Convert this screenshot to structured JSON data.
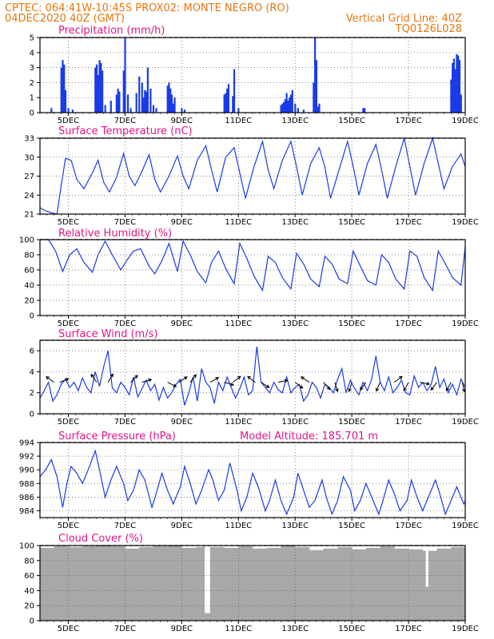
{
  "header": {
    "line1_left": "CPTEC:   064:41W-10:45S   PROX02: MONTE NEGRO (RO)",
    "line2_left": "04DEC2020 40Z (GMT)",
    "line2_right": "Vertical Grid Line: 40Z",
    "line3_right": "TQ0126L028"
  },
  "colors": {
    "header": "#e8750c",
    "panel_title": "#e0158a",
    "series": "#1a3be8",
    "cloud": "#a8a8a8"
  },
  "x_tick_labels": [
    "5DEC",
    "7DEC",
    "9DEC",
    "11DEC",
    "13DEC",
    "15DEC",
    "17DEC",
    "19DEC"
  ],
  "chart_data": [
    {
      "type": "bar",
      "title": "Precipitation (mm/h)",
      "ylim": [
        0,
        5
      ],
      "yticks": [
        0,
        1,
        2,
        3,
        4,
        5
      ],
      "x_range": [
        4.0,
        19.0
      ],
      "grid": true,
      "x": [
        4.4,
        4.75,
        4.8,
        4.85,
        4.9,
        5.0,
        5.15,
        5.95,
        6.0,
        6.05,
        6.1,
        6.15,
        6.2,
        6.3,
        6.5,
        6.7,
        6.75,
        6.8,
        6.95,
        7.0,
        7.1,
        7.2,
        7.4,
        7.5,
        7.6,
        7.65,
        7.7,
        7.75,
        7.8,
        7.9,
        8.0,
        8.1,
        8.5,
        8.55,
        8.6,
        8.65,
        8.7,
        8.75,
        9.0,
        9.1,
        10.5,
        10.55,
        10.6,
        10.65,
        10.8,
        10.85,
        11.0,
        12.5,
        12.55,
        12.6,
        12.65,
        12.7,
        12.75,
        12.8,
        12.85,
        12.9,
        13.0,
        13.1,
        13.3,
        13.65,
        13.7,
        13.75,
        13.8,
        13.85,
        15.4,
        15.45,
        18.5,
        18.55,
        18.6,
        18.65,
        18.7,
        18.75,
        18.8,
        18.85
      ],
      "values": [
        0.3,
        3.0,
        3.5,
        3.2,
        1.5,
        0.3,
        0.2,
        3.0,
        3.2,
        2.5,
        3.5,
        3.3,
        2.8,
        0.5,
        0.8,
        1.2,
        1.6,
        1.4,
        2.8,
        5.0,
        1.2,
        0.3,
        1.3,
        2.4,
        2.0,
        1.0,
        1.5,
        1.4,
        3.0,
        1.6,
        0.5,
        0.3,
        1.8,
        2.0,
        1.6,
        1.2,
        0.6,
        1.0,
        0.3,
        0.2,
        1.2,
        1.3,
        1.6,
        1.9,
        1.1,
        2.9,
        0.3,
        0.5,
        0.6,
        0.7,
        0.9,
        1.3,
        0.8,
        1.0,
        1.2,
        1.5,
        0.6,
        0.3,
        0.2,
        2.0,
        5.0,
        3.5,
        0.4,
        0.6,
        0.3,
        0.3,
        2.2,
        3.3,
        3.6,
        2.9,
        3.9,
        3.8,
        3.5,
        1.2
      ]
    },
    {
      "type": "line",
      "title": "Surface Temperature (nC)",
      "ylim": [
        21,
        33
      ],
      "yticks": [
        21,
        24,
        27,
        30,
        33
      ],
      "x_range": [
        4.0,
        19.0
      ],
      "grid": true,
      "x": [
        4.0,
        4.2,
        4.4,
        4.6,
        4.75,
        4.9,
        5.1,
        5.3,
        5.55,
        5.85,
        6.05,
        6.25,
        6.45,
        6.7,
        6.95,
        7.15,
        7.35,
        7.6,
        7.85,
        8.05,
        8.25,
        8.55,
        8.85,
        9.05,
        9.25,
        9.55,
        9.85,
        10.05,
        10.25,
        10.55,
        10.85,
        11.05,
        11.25,
        11.55,
        11.85,
        12.05,
        12.25,
        12.55,
        12.85,
        13.05,
        13.25,
        13.55,
        13.85,
        14.05,
        14.25,
        14.55,
        14.85,
        15.05,
        15.25,
        15.55,
        15.85,
        16.05,
        16.25,
        16.55,
        16.85,
        17.05,
        17.25,
        17.55,
        17.85,
        18.05,
        18.25,
        18.55,
        18.85,
        19.0
      ],
      "values": [
        22.0,
        21.5,
        21.2,
        21.0,
        25.5,
        29.8,
        29.5,
        26.5,
        25.0,
        27.5,
        29.5,
        26.0,
        24.5,
        26.8,
        30.6,
        27.0,
        25.5,
        27.8,
        30.4,
        26.5,
        24.5,
        27.0,
        30.2,
        27.0,
        25.0,
        29.5,
        31.8,
        28.0,
        24.5,
        30.0,
        31.5,
        27.5,
        23.5,
        28.5,
        32.5,
        28.0,
        25.0,
        29.5,
        32.5,
        28.5,
        24.0,
        29.0,
        31.5,
        28.5,
        23.5,
        28.0,
        32.5,
        28.5,
        24.0,
        29.0,
        32.0,
        28.0,
        23.5,
        28.5,
        33.0,
        28.5,
        24.0,
        29.0,
        33.5,
        29.0,
        25.0,
        28.5,
        30.5,
        28.5
      ]
    },
    {
      "type": "line",
      "title": "Relative Humidity (%)",
      "ylim": [
        0,
        100
      ],
      "yticks": [
        0,
        20,
        40,
        60,
        80,
        100
      ],
      "x_range": [
        4.0,
        19.0
      ],
      "grid": true,
      "x": [
        4.0,
        4.3,
        4.55,
        4.8,
        5.05,
        5.3,
        5.55,
        5.85,
        6.05,
        6.3,
        6.55,
        6.85,
        7.05,
        7.3,
        7.55,
        7.85,
        8.05,
        8.3,
        8.55,
        8.85,
        9.05,
        9.3,
        9.55,
        9.85,
        10.05,
        10.3,
        10.55,
        10.85,
        11.05,
        11.3,
        11.55,
        11.85,
        12.05,
        12.3,
        12.55,
        12.85,
        13.05,
        13.3,
        13.55,
        13.85,
        14.05,
        14.3,
        14.55,
        14.85,
        15.05,
        15.3,
        15.55,
        15.85,
        16.05,
        16.3,
        16.55,
        16.85,
        17.05,
        17.3,
        17.55,
        17.85,
        18.05,
        18.3,
        18.55,
        18.85,
        19.0
      ],
      "values": [
        100,
        100,
        85,
        58,
        80,
        88,
        70,
        57,
        80,
        98,
        80,
        60,
        72,
        85,
        88,
        65,
        55,
        72,
        95,
        58,
        98,
        80,
        58,
        43,
        70,
        85,
        62,
        42,
        95,
        75,
        52,
        33,
        78,
        70,
        50,
        35,
        82,
        68,
        48,
        38,
        78,
        68,
        48,
        42,
        85,
        65,
        46,
        40,
        80,
        70,
        48,
        35,
        85,
        78,
        50,
        33,
        85,
        68,
        50,
        40,
        90
      ]
    },
    {
      "type": "line",
      "title": "Surface Wind (m/s)",
      "ylim": [
        0,
        7
      ],
      "yticks": [
        0,
        2,
        4,
        6
      ],
      "x_range": [
        4.0,
        19.0
      ],
      "grid": true,
      "x": [
        4.0,
        4.15,
        4.3,
        4.45,
        4.6,
        4.75,
        4.9,
        5.05,
        5.2,
        5.35,
        5.5,
        5.65,
        5.8,
        5.95,
        6.1,
        6.25,
        6.4,
        6.55,
        6.7,
        6.85,
        7.0,
        7.15,
        7.3,
        7.45,
        7.6,
        7.75,
        7.9,
        8.05,
        8.2,
        8.35,
        8.5,
        8.65,
        8.8,
        8.95,
        9.1,
        9.25,
        9.4,
        9.55,
        9.7,
        9.85,
        10.0,
        10.15,
        10.3,
        10.45,
        10.6,
        10.75,
        10.9,
        11.05,
        11.2,
        11.35,
        11.5,
        11.65,
        11.8,
        11.95,
        12.1,
        12.25,
        12.4,
        12.55,
        12.7,
        12.85,
        13.0,
        13.15,
        13.3,
        13.45,
        13.6,
        13.75,
        13.9,
        14.05,
        14.2,
        14.35,
        14.5,
        14.65,
        14.8,
        14.95,
        15.1,
        15.25,
        15.4,
        15.55,
        15.7,
        15.85,
        16.0,
        16.15,
        16.3,
        16.45,
        16.6,
        16.75,
        16.9,
        17.05,
        17.2,
        17.35,
        17.5,
        17.65,
        17.8,
        17.95,
        18.1,
        18.25,
        18.4,
        18.55,
        18.7,
        18.85,
        19.0
      ],
      "values": [
        1.5,
        2.2,
        3.0,
        1.2,
        1.8,
        2.8,
        3.3,
        2.5,
        3.0,
        2.2,
        3.4,
        2.5,
        2.0,
        4.0,
        2.6,
        4.5,
        6.0,
        2.5,
        2.0,
        3.0,
        2.5,
        1.8,
        3.5,
        1.6,
        2.4,
        3.2,
        2.2,
        2.8,
        1.3,
        2.5,
        1.5,
        2.0,
        2.8,
        3.3,
        0.8,
        2.0,
        3.5,
        1.2,
        4.3,
        3.0,
        2.5,
        1.0,
        3.0,
        2.2,
        3.5,
        2.5,
        1.5,
        2.4,
        3.5,
        1.8,
        2.2,
        6.4,
        3.0,
        2.5,
        2.0,
        3.0,
        2.3,
        2.0,
        3.5,
        2.0,
        2.5,
        2.8,
        1.2,
        1.8,
        3.0,
        2.5,
        1.5,
        2.8,
        2.5,
        2.0,
        3.3,
        4.3,
        2.0,
        3.2,
        2.4,
        1.8,
        3.0,
        2.2,
        3.3,
        5.5,
        3.0,
        2.2,
        3.5,
        2.0,
        2.5,
        3.2,
        2.0,
        1.8,
        3.6,
        2.5,
        3.0,
        2.2,
        2.8,
        4.5,
        2.5,
        3.3,
        2.0,
        2.8,
        1.8,
        3.3,
        2.5
      ],
      "arrows": [
        {
          "x": 4.5,
          "u": -1.0,
          "v": 0.7
        },
        {
          "x": 4.7,
          "u": 1.0,
          "v": 0.4
        },
        {
          "x": 6.0,
          "u": -0.7,
          "v": 1.0
        },
        {
          "x": 6.4,
          "u": 0.6,
          "v": 1.0
        },
        {
          "x": 7.2,
          "u": 0.8,
          "v": 0.8
        },
        {
          "x": 7.6,
          "u": 1.0,
          "v": 0.3
        },
        {
          "x": 8.5,
          "u": 1.0,
          "v": -0.5
        },
        {
          "x": 8.9,
          "u": 0.9,
          "v": 0.6
        },
        {
          "x": 9.3,
          "u": 0.7,
          "v": 0.9
        },
        {
          "x": 10.0,
          "u": 0.9,
          "v": 0.5
        },
        {
          "x": 10.5,
          "u": 1.0,
          "v": -0.3
        },
        {
          "x": 10.8,
          "u": 0.8,
          "v": 0.6
        },
        {
          "x": 11.6,
          "u": -0.8,
          "v": 0.6
        },
        {
          "x": 11.8,
          "u": 0.9,
          "v": -0.6
        },
        {
          "x": 12.4,
          "u": 1.0,
          "v": 0.2
        },
        {
          "x": 13.0,
          "u": 0.9,
          "v": -0.7
        },
        {
          "x": 13.5,
          "u": -0.9,
          "v": 0.6
        },
        {
          "x": 14.0,
          "u": 0.7,
          "v": -0.8
        },
        {
          "x": 14.4,
          "u": 0.3,
          "v": -1.0
        },
        {
          "x": 15.0,
          "u": -0.3,
          "v": -1.0
        },
        {
          "x": 15.5,
          "u": -0.6,
          "v": -0.8
        },
        {
          "x": 16.0,
          "u": -0.4,
          "v": -0.9
        },
        {
          "x": 16.5,
          "u": 0.8,
          "v": 0.6
        },
        {
          "x": 17.0,
          "u": -0.5,
          "v": -0.9
        },
        {
          "x": 17.4,
          "u": 1.0,
          "v": -0.2
        },
        {
          "x": 18.0,
          "u": -0.6,
          "v": -0.8
        },
        {
          "x": 18.5,
          "u": -0.5,
          "v": -0.9
        },
        {
          "x": 18.9,
          "u": 0.2,
          "v": -1.0
        }
      ]
    },
    {
      "type": "line",
      "title": "Surface Pressure (hPa)",
      "subtitle": "Model Altitude: 185.701 m",
      "ylim": [
        983,
        994
      ],
      "yticks": [
        984,
        986,
        988,
        990,
        992,
        994
      ],
      "x_range": [
        4.0,
        19.0
      ],
      "grid": true,
      "x": [
        4.0,
        4.2,
        4.4,
        4.6,
        4.8,
        4.95,
        5.1,
        5.3,
        5.5,
        5.7,
        5.95,
        6.1,
        6.3,
        6.5,
        6.7,
        6.95,
        7.1,
        7.3,
        7.5,
        7.7,
        7.95,
        8.1,
        8.3,
        8.5,
        8.7,
        8.95,
        9.1,
        9.3,
        9.5,
        9.7,
        9.95,
        10.1,
        10.3,
        10.5,
        10.7,
        10.95,
        11.1,
        11.3,
        11.5,
        11.7,
        11.95,
        12.1,
        12.3,
        12.5,
        12.7,
        12.95,
        13.1,
        13.3,
        13.5,
        13.7,
        13.95,
        14.1,
        14.3,
        14.5,
        14.7,
        14.95,
        15.1,
        15.3,
        15.5,
        15.7,
        15.95,
        16.1,
        16.3,
        16.5,
        16.7,
        16.95,
        17.1,
        17.3,
        17.5,
        17.7,
        17.95,
        18.1,
        18.3,
        18.5,
        18.7,
        18.95,
        19.0
      ],
      "values": [
        989.0,
        990.0,
        991.5,
        989.0,
        984.5,
        988.0,
        990.5,
        989.5,
        988.0,
        990.0,
        992.8,
        990.0,
        986.0,
        988.5,
        990.5,
        988.0,
        985.5,
        987.0,
        990.0,
        988.5,
        984.5,
        986.5,
        989.5,
        987.0,
        985.0,
        987.5,
        990.5,
        988.0,
        985.0,
        987.0,
        990.0,
        988.5,
        985.5,
        987.0,
        991.0,
        987.0,
        984.0,
        986.0,
        989.5,
        987.5,
        984.0,
        985.5,
        988.5,
        985.5,
        983.5,
        986.0,
        989.5,
        987.0,
        984.5,
        985.5,
        988.5,
        986.0,
        983.5,
        985.5,
        989.0,
        987.0,
        984.0,
        985.5,
        988.0,
        986.0,
        983.5,
        985.5,
        988.5,
        986.5,
        984.0,
        985.5,
        988.5,
        986.0,
        984.0,
        986.0,
        988.5,
        986.5,
        983.5,
        985.5,
        987.5,
        985.0,
        985.5
      ]
    },
    {
      "type": "area",
      "title": "Cloud Cover (%)",
      "ylim": [
        0,
        100
      ],
      "yticks": [
        0,
        20,
        40,
        60,
        80,
        100
      ],
      "x_range": [
        4.0,
        19.0
      ],
      "grid": true,
      "x": [
        4.0,
        4.5,
        5.0,
        5.5,
        6.0,
        6.5,
        7.0,
        7.5,
        8.0,
        8.5,
        9.0,
        9.5,
        9.75,
        9.8,
        10.0,
        10.5,
        11.0,
        11.5,
        12.0,
        12.5,
        13.0,
        13.5,
        14.0,
        14.5,
        15.0,
        15.5,
        16.0,
        16.5,
        17.0,
        17.5,
        17.6,
        17.7,
        18.0,
        18.5,
        19.0
      ],
      "values": [
        97,
        99,
        98,
        99,
        100,
        99,
        96,
        98,
        99,
        100,
        97,
        98,
        99,
        10,
        98,
        97,
        99,
        96,
        97,
        100,
        98,
        94,
        96,
        98,
        95,
        97,
        99,
        96,
        95,
        93,
        45,
        93,
        96,
        98,
        97
      ]
    }
  ]
}
